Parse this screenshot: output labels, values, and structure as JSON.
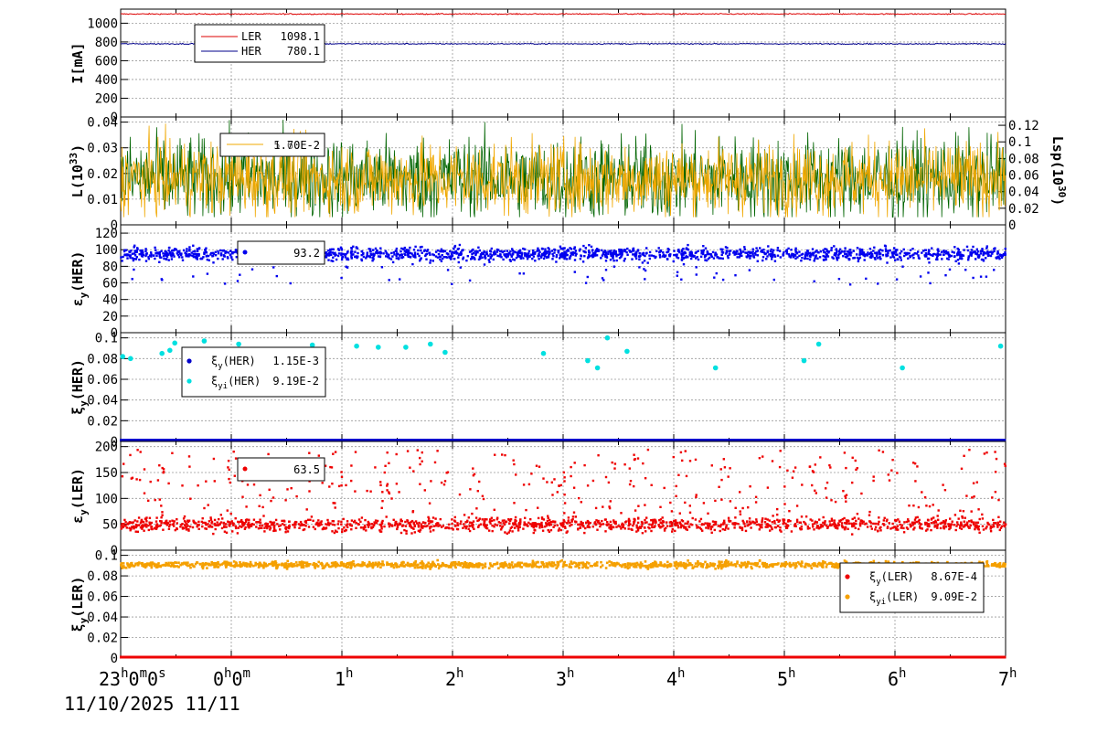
{
  "time_axis": {
    "span_hours": 8,
    "tick_labels": [
      {
        "h": 0,
        "main": "23",
        "sup1": "h",
        "mid": "0",
        "sup2": "m",
        "mid2": "0",
        "sup3": "s"
      },
      {
        "h": 1,
        "main": "0",
        "sup1": "h",
        "mid": "0",
        "sup2": "m"
      },
      {
        "h": 2,
        "main": "1",
        "sup1": "h"
      },
      {
        "h": 3,
        "main": "2",
        "sup1": "h"
      },
      {
        "h": 4,
        "main": "3",
        "sup1": "h"
      },
      {
        "h": 5,
        "main": "4",
        "sup1": "h"
      },
      {
        "h": 6,
        "main": "5",
        "sup1": "h"
      },
      {
        "h": 7,
        "main": "6",
        "sup1": "h"
      },
      {
        "h": 8,
        "main": "7",
        "sup1": "h"
      }
    ],
    "date_label": "11/10/2025 11/11"
  },
  "chart_data": [
    {
      "type": "line",
      "ylabel": "I[mA]",
      "ylim": [
        0,
        1150
      ],
      "yticks": [
        0,
        200,
        400,
        600,
        800,
        1000
      ],
      "grid": true,
      "legend_placement": "top-left",
      "series": [
        {
          "name": "LER",
          "value_label": "1098.1",
          "color": "#dd0000",
          "level": 1098.1
        },
        {
          "name": "HER",
          "value_label": "780.1",
          "color": "#00008b",
          "level": 780.1
        }
      ]
    },
    {
      "type": "line",
      "ylabel": "L(10^33)",
      "y2label": "Lsp(10^30)",
      "ylim": [
        0,
        0.042
      ],
      "yticks": [
        0,
        0.01,
        0.02,
        0.03,
        0.04
      ],
      "ytick_labels": [
        "0",
        "0.01",
        "0.02",
        "0.03",
        "0.04"
      ],
      "y2lim": [
        0,
        0.13
      ],
      "y2ticks": [
        0,
        0.02,
        0.04,
        0.06,
        0.08,
        0.1,
        0.12
      ],
      "y2tick_labels": [
        "0",
        "0.02",
        "0.04",
        "0.06",
        "0.08",
        "0.1",
        "0.12"
      ],
      "grid": true,
      "legend_placement": "top-left",
      "legend_text_a": "1.70E-2",
      "legend_text_b": "5.60E-2",
      "series": [
        {
          "name": "L",
          "color": "#006400",
          "mean": 0.018,
          "spread": 0.009
        },
        {
          "name": "Lsp",
          "color": "#f0a800",
          "mean": 0.018,
          "spread": 0.008
        }
      ]
    },
    {
      "type": "scatter",
      "ylabel": "εy(HER)",
      "ylim": [
        0,
        130
      ],
      "yticks": [
        0,
        20,
        40,
        60,
        80,
        100,
        120
      ],
      "grid": true,
      "legend_placement": "top-left",
      "legend_text": "93.2",
      "series": [
        {
          "name": "εy(HER)",
          "color": "#0000ee",
          "mean": 95,
          "spread": 4
        }
      ]
    },
    {
      "type": "scatter",
      "ylabel": "ξy(HER)",
      "ylim": [
        0,
        0.105
      ],
      "yticks": [
        0,
        0.02,
        0.04,
        0.06,
        0.08,
        0.1
      ],
      "ytick_labels": [
        "0",
        "0.02",
        "0.04",
        "0.06",
        "0.08",
        "0.1"
      ],
      "grid": true,
      "legend_placement": "top-left",
      "series": [
        {
          "name": "ξy(HER)",
          "sub": "y",
          "value_label": "1.15E-3",
          "color": "#0000cc",
          "level": 0.00115
        },
        {
          "name": "ξyi(HER)",
          "sub": "yi",
          "value_label": "9.19E-2",
          "color": "#00e0e0",
          "points": [
            [
              0.02,
              0.082
            ],
            [
              0.1,
              0.08
            ],
            [
              0.42,
              0.085
            ],
            [
              0.5,
              0.088
            ],
            [
              0.55,
              0.095
            ],
            [
              0.85,
              0.097
            ],
            [
              1.2,
              0.094
            ],
            [
              1.6,
              0.083
            ],
            [
              1.95,
              0.093
            ],
            [
              2.4,
              0.092
            ],
            [
              2.62,
              0.091
            ],
            [
              2.9,
              0.091
            ],
            [
              3.15,
              0.094
            ],
            [
              3.3,
              0.086
            ],
            [
              4.3,
              0.085
            ],
            [
              4.75,
              0.078
            ],
            [
              4.85,
              0.071
            ],
            [
              4.95,
              0.1
            ],
            [
              5.15,
              0.087
            ],
            [
              6.05,
              0.071
            ],
            [
              6.95,
              0.078
            ],
            [
              7.1,
              0.094
            ],
            [
              7.95,
              0.071
            ],
            [
              8.95,
              0.092
            ]
          ]
        }
      ]
    },
    {
      "type": "scatter",
      "ylabel": "εy(LER)",
      "ylim": [
        0,
        210
      ],
      "yticks": [
        0,
        50,
        100,
        150,
        200
      ],
      "grid": true,
      "legend_placement": "top-left",
      "legend_text": "63.5",
      "series": [
        {
          "name": "εy(LER)",
          "color": "#ee0000",
          "mean": 50,
          "spread": 6
        }
      ]
    },
    {
      "type": "scatter",
      "ylabel": "ξy(LER)",
      "ylim": [
        0,
        0.105
      ],
      "yticks": [
        0,
        0.02,
        0.04,
        0.06,
        0.08,
        0.1
      ],
      "ytick_labels": [
        "0",
        "0.02",
        "0.04",
        "0.06",
        "0.08",
        "0.1"
      ],
      "grid": true,
      "legend_placement": "top-right",
      "series": [
        {
          "name": "ξy(LER)",
          "sub": "y",
          "value_label": "8.67E-4",
          "color": "#ee0000",
          "level": 0.000867
        },
        {
          "name": "ξyi(LER)",
          "sub": "yi",
          "value_label": "9.09E-2",
          "color": "#f5a000",
          "mean": 0.091,
          "spread": 0.0015
        }
      ]
    }
  ]
}
